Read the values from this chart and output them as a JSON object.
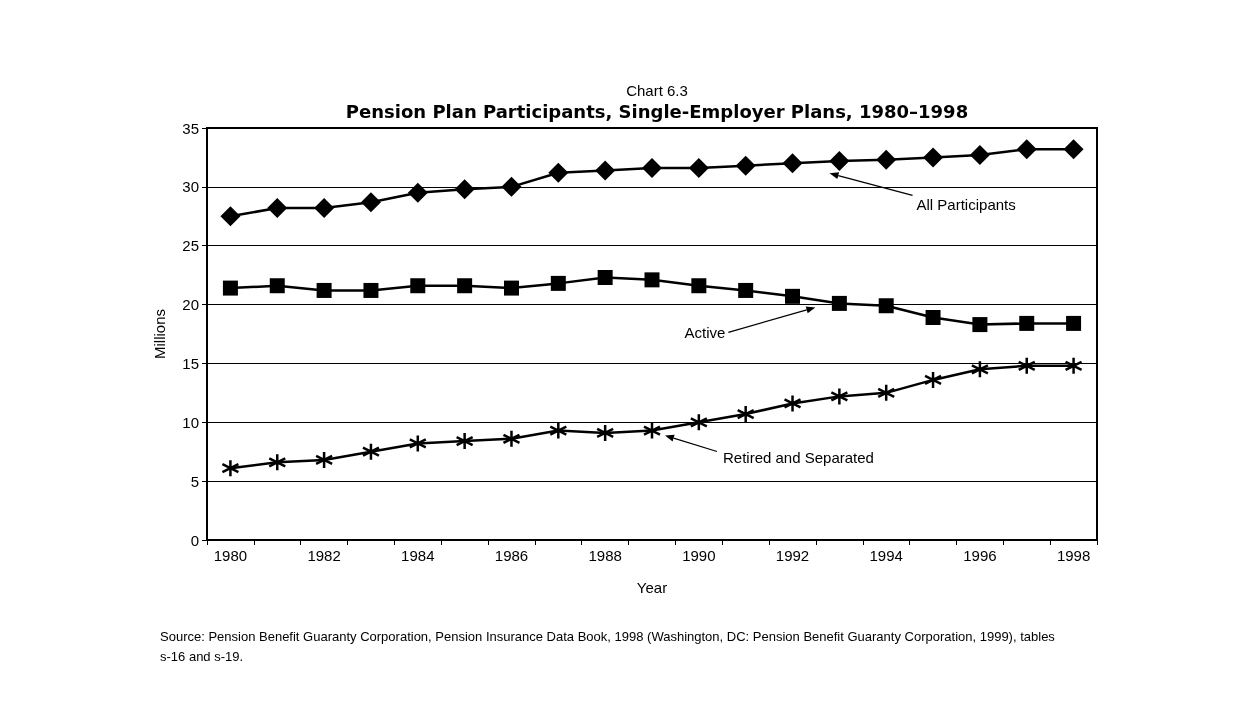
{
  "chart_data": {
    "type": "line",
    "title": "Chart 6.3",
    "subtitle": "Pension Plan Participants, Single-Employer Plans, 1980–1998",
    "xlabel": "Year",
    "ylabel": "Millions",
    "categories": [
      "1980",
      null,
      "1982",
      null,
      "1984",
      null,
      "1986",
      null,
      "1988",
      null,
      "1990",
      null,
      "1992",
      null,
      "1994",
      null,
      "1996",
      null,
      "1998"
    ],
    "series": [
      {
        "name": "All Participants",
        "color": "#000000",
        "marker": "diamond",
        "values": [
          27.5,
          28.2,
          28.2,
          28.7,
          29.5,
          29.8,
          30.0,
          31.2,
          31.4,
          31.6,
          31.6,
          31.8,
          32.0,
          32.2,
          32.3,
          32.5,
          32.7,
          33.2,
          33.2
        ]
      },
      {
        "name": "Active",
        "color": "#000000",
        "marker": "square",
        "values": [
          21.4,
          21.6,
          21.2,
          21.2,
          21.6,
          21.6,
          21.4,
          21.8,
          22.3,
          22.1,
          21.6,
          21.2,
          20.7,
          20.1,
          19.9,
          18.9,
          18.3,
          18.4,
          18.4
        ]
      },
      {
        "name": "Retired and Separated",
        "color": "#000000",
        "marker": "cross",
        "values": [
          6.1,
          6.6,
          6.8,
          7.5,
          8.2,
          8.4,
          8.6,
          9.3,
          9.1,
          9.3,
          10.0,
          10.7,
          11.6,
          12.2,
          12.5,
          13.6,
          14.5,
          14.8,
          14.8
        ]
      }
    ],
    "ylim": [
      0,
      35
    ],
    "yticks": [
      0,
      5,
      10,
      15,
      20,
      25,
      30,
      35
    ],
    "grid": "y",
    "line_style": "solid",
    "annotations": [
      "Source: Pension Benefit Guaranty Corporation, Pension Insurance Data Book, 1998 (Washington, DC: Pension Benefit Guaranty Corporation, 1999), tables s-16 and s-19."
    ]
  }
}
